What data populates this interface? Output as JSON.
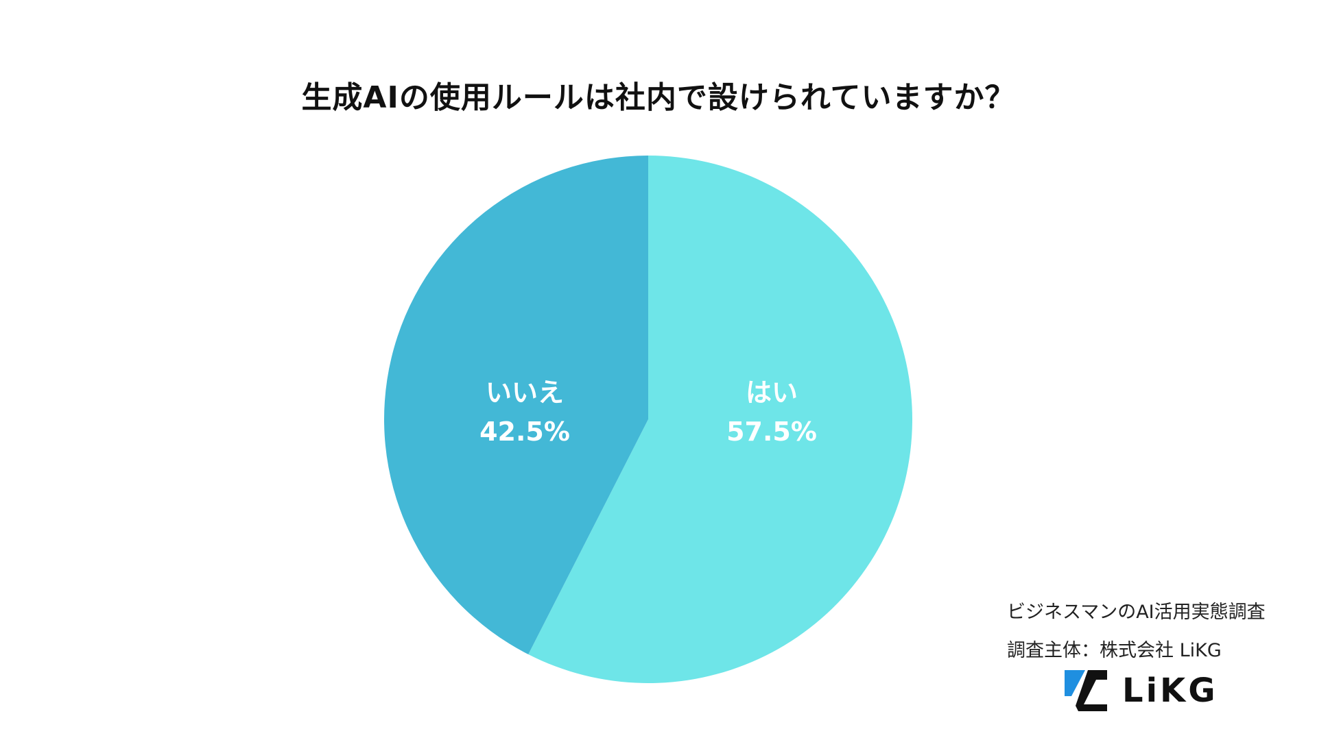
{
  "title": "生成AIの使用ルールは社内で設けられていますか？",
  "chart_data": {
    "type": "pie",
    "title": "生成AIの使用ルールは社内で設けられていますか？",
    "slices": [
      {
        "label": "はい",
        "value": 57.5,
        "value_label": "57.5%",
        "color": "#6ee5e8"
      },
      {
        "label": "いいえ",
        "value": 42.5,
        "value_label": "42.5%",
        "color": "#43b8d6"
      }
    ],
    "start_angle_deg": 0,
    "direction": "clockwise"
  },
  "footer": {
    "survey_name": "ビジネスマンのAI活用実態調査",
    "survey_owner": "調査主体：株式会社 LiKG"
  },
  "logo": {
    "text": "LiKG",
    "mark_colors": [
      "#1f8fe0",
      "#111111"
    ]
  }
}
